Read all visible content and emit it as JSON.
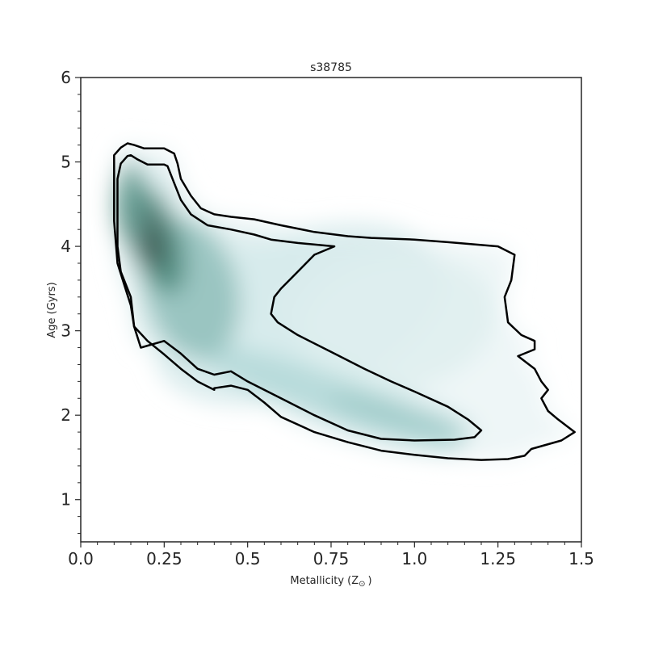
{
  "chart_data": {
    "type": "contour",
    "title": "s38785",
    "xlabel": "Metallicity (Z",
    "xlabel_sub": "⊙",
    "xlabel_close": ")",
    "ylabel": "Age (Gyrs)",
    "xlim": [
      0.0,
      1.5
    ],
    "ylim": [
      0.5,
      6.0
    ],
    "xticks": [
      0.0,
      0.25,
      0.5,
      0.75,
      1.0,
      1.25,
      1.5
    ],
    "xtick_labels": [
      "0.0",
      "0.25",
      "0.5",
      "0.75",
      "1.0",
      "1.25",
      "1.5"
    ],
    "yticks": [
      1,
      2,
      3,
      4,
      5,
      6
    ],
    "ytick_labels": [
      "1",
      "2",
      "3",
      "4",
      "5",
      "6"
    ],
    "grid": false,
    "colors": {
      "frame": "#262626",
      "contour_line": "#000000",
      "density_low": "#eef6f7",
      "density_mid": "#a9d3d3",
      "density_high": "#3f7f6f",
      "density_peak": "#4a4a4a"
    },
    "outer_contour": [
      [
        0.1,
        5.08
      ],
      [
        0.12,
        5.17
      ],
      [
        0.14,
        5.22
      ],
      [
        0.16,
        5.2
      ],
      [
        0.19,
        5.16
      ],
      [
        0.25,
        5.16
      ],
      [
        0.28,
        5.1
      ],
      [
        0.29,
        4.98
      ],
      [
        0.3,
        4.8
      ],
      [
        0.33,
        4.6
      ],
      [
        0.36,
        4.45
      ],
      [
        0.4,
        4.38
      ],
      [
        0.45,
        4.35
      ],
      [
        0.52,
        4.32
      ],
      [
        0.6,
        4.25
      ],
      [
        0.7,
        4.17
      ],
      [
        0.8,
        4.12
      ],
      [
        0.87,
        4.1
      ],
      [
        1.0,
        4.08
      ],
      [
        1.1,
        4.05
      ],
      [
        1.25,
        4.0
      ],
      [
        1.3,
        3.9
      ],
      [
        1.29,
        3.6
      ],
      [
        1.27,
        3.4
      ],
      [
        1.28,
        3.1
      ],
      [
        1.32,
        2.95
      ],
      [
        1.36,
        2.88
      ],
      [
        1.36,
        2.78
      ],
      [
        1.31,
        2.7
      ],
      [
        1.36,
        2.55
      ],
      [
        1.38,
        2.4
      ],
      [
        1.4,
        2.3
      ],
      [
        1.38,
        2.2
      ],
      [
        1.4,
        2.05
      ],
      [
        1.43,
        1.95
      ],
      [
        1.48,
        1.8
      ],
      [
        1.44,
        1.7
      ],
      [
        1.35,
        1.6
      ],
      [
        1.33,
        1.52
      ],
      [
        1.28,
        1.48
      ],
      [
        1.2,
        1.47
      ],
      [
        1.1,
        1.49
      ],
      [
        1.0,
        1.53
      ],
      [
        0.9,
        1.58
      ],
      [
        0.8,
        1.68
      ],
      [
        0.7,
        1.8
      ],
      [
        0.6,
        1.98
      ],
      [
        0.55,
        2.15
      ],
      [
        0.5,
        2.3
      ],
      [
        0.45,
        2.35
      ],
      [
        0.4,
        2.32
      ],
      [
        0.4,
        2.3
      ],
      [
        0.35,
        2.4
      ],
      [
        0.3,
        2.55
      ],
      [
        0.25,
        2.72
      ],
      [
        0.2,
        2.88
      ],
      [
        0.16,
        3.05
      ],
      [
        0.15,
        3.3
      ],
      [
        0.13,
        3.55
      ],
      [
        0.11,
        3.8
      ],
      [
        0.1,
        4.3
      ],
      [
        0.1,
        4.8
      ]
    ],
    "inner_contour": [
      [
        0.11,
        4.8
      ],
      [
        0.12,
        4.98
      ],
      [
        0.14,
        5.07
      ],
      [
        0.15,
        5.08
      ],
      [
        0.17,
        5.03
      ],
      [
        0.2,
        4.97
      ],
      [
        0.25,
        4.97
      ],
      [
        0.26,
        4.95
      ],
      [
        0.28,
        4.75
      ],
      [
        0.3,
        4.55
      ],
      [
        0.33,
        4.38
      ],
      [
        0.38,
        4.25
      ],
      [
        0.45,
        4.2
      ],
      [
        0.52,
        4.14
      ],
      [
        0.57,
        4.08
      ],
      [
        0.65,
        4.04
      ],
      [
        0.76,
        4.0
      ],
      [
        0.7,
        3.9
      ],
      [
        0.65,
        3.7
      ],
      [
        0.6,
        3.5
      ],
      [
        0.58,
        3.4
      ],
      [
        0.57,
        3.2
      ],
      [
        0.59,
        3.1
      ],
      [
        0.65,
        2.95
      ],
      [
        0.75,
        2.75
      ],
      [
        0.85,
        2.55
      ],
      [
        0.93,
        2.4
      ],
      [
        1.0,
        2.28
      ],
      [
        1.1,
        2.1
      ],
      [
        1.16,
        1.95
      ],
      [
        1.2,
        1.82
      ],
      [
        1.18,
        1.74
      ],
      [
        1.12,
        1.71
      ],
      [
        1.0,
        1.7
      ],
      [
        0.9,
        1.72
      ],
      [
        0.8,
        1.82
      ],
      [
        0.7,
        2.0
      ],
      [
        0.6,
        2.2
      ],
      [
        0.5,
        2.4
      ],
      [
        0.45,
        2.52
      ],
      [
        0.4,
        2.48
      ],
      [
        0.35,
        2.55
      ],
      [
        0.3,
        2.73
      ],
      [
        0.25,
        2.88
      ],
      [
        0.18,
        2.8
      ],
      [
        0.16,
        3.05
      ],
      [
        0.15,
        3.4
      ],
      [
        0.12,
        3.7
      ],
      [
        0.11,
        4.0
      ],
      [
        0.11,
        4.4
      ]
    ],
    "density_blobs": [
      {
        "x": 0.65,
        "y": 3.2,
        "rx": 0.45,
        "ry": 0.95,
        "rot": -20,
        "level": 0.12
      },
      {
        "x": 0.95,
        "y": 3.1,
        "rx": 0.3,
        "ry": 0.8,
        "rot": -10,
        "level": 0.08
      },
      {
        "x": 0.75,
        "y": 2.2,
        "rx": 0.42,
        "ry": 0.28,
        "rot": 20,
        "level": 0.3
      },
      {
        "x": 0.95,
        "y": 2.0,
        "rx": 0.22,
        "ry": 0.14,
        "rot": 15,
        "level": 0.4
      },
      {
        "x": 0.33,
        "y": 3.5,
        "rx": 0.14,
        "ry": 0.85,
        "rot": -15,
        "level": 0.45
      },
      {
        "x": 0.22,
        "y": 4.1,
        "rx": 0.08,
        "ry": 0.7,
        "rot": -20,
        "level": 0.7
      },
      {
        "x": 0.2,
        "y": 4.15,
        "rx": 0.05,
        "ry": 0.45,
        "rot": -20,
        "level": 0.9
      },
      {
        "x": 0.15,
        "y": 4.5,
        "rx": 0.05,
        "ry": 0.5,
        "rot": 0,
        "level": 0.6
      }
    ]
  }
}
